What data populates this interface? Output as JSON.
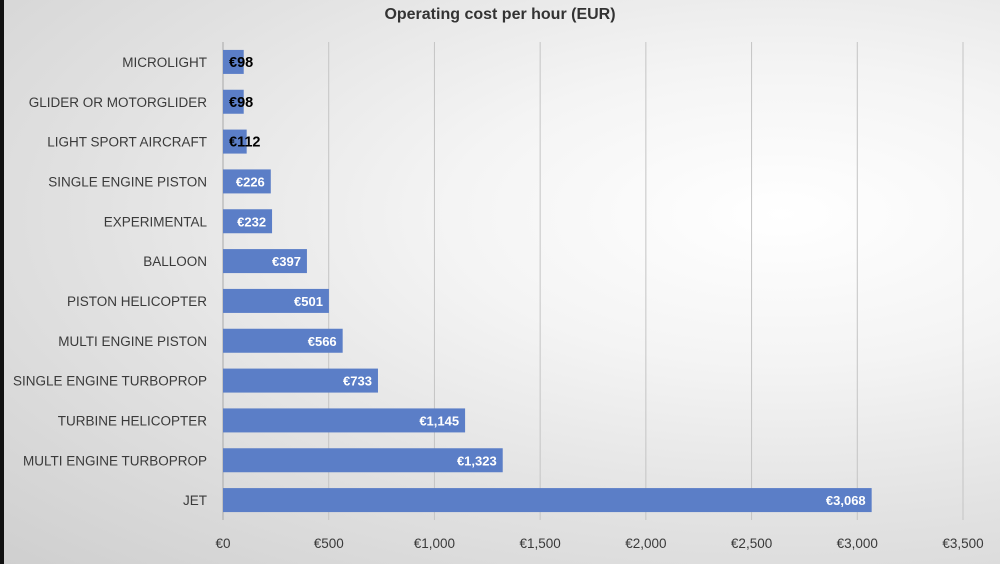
{
  "chart_data": {
    "type": "bar",
    "orientation": "horizontal",
    "title": "Operating cost per hour (EUR)",
    "xlabel": "",
    "ylabel": "",
    "categories": [
      "MICROLIGHT",
      "GLIDER OR MOTORGLIDER",
      "LIGHT SPORT AIRCRAFT",
      "SINGLE ENGINE PISTON",
      "EXPERIMENTAL",
      "BALLOON",
      "PISTON HELICOPTER",
      "MULTI ENGINE PISTON",
      "SINGLE ENGINE TURBOPROP",
      "TURBINE HELICOPTER",
      "MULTI ENGINE TURBOPROP",
      "JET"
    ],
    "values": [
      98,
      98,
      112,
      226,
      232,
      397,
      501,
      566,
      733,
      1145,
      1323,
      3068
    ],
    "data_labels": [
      "€98",
      "€98",
      "€112",
      "€226",
      "€232",
      "€397",
      "€501",
      "€566",
      "€733",
      "€1,145",
      "€1,323",
      "€3,068"
    ],
    "xlim": [
      0,
      3500
    ],
    "x_ticks": [
      0,
      500,
      1000,
      1500,
      2000,
      2500,
      3000,
      3500
    ],
    "x_tick_labels": [
      "€0",
      "€500",
      "€1,000",
      "€1,500",
      "€2,000",
      "€2,500",
      "€3,000",
      "€3,500"
    ],
    "grid": "vertical",
    "legend": "none",
    "bar_color": "#5b7ec7"
  }
}
